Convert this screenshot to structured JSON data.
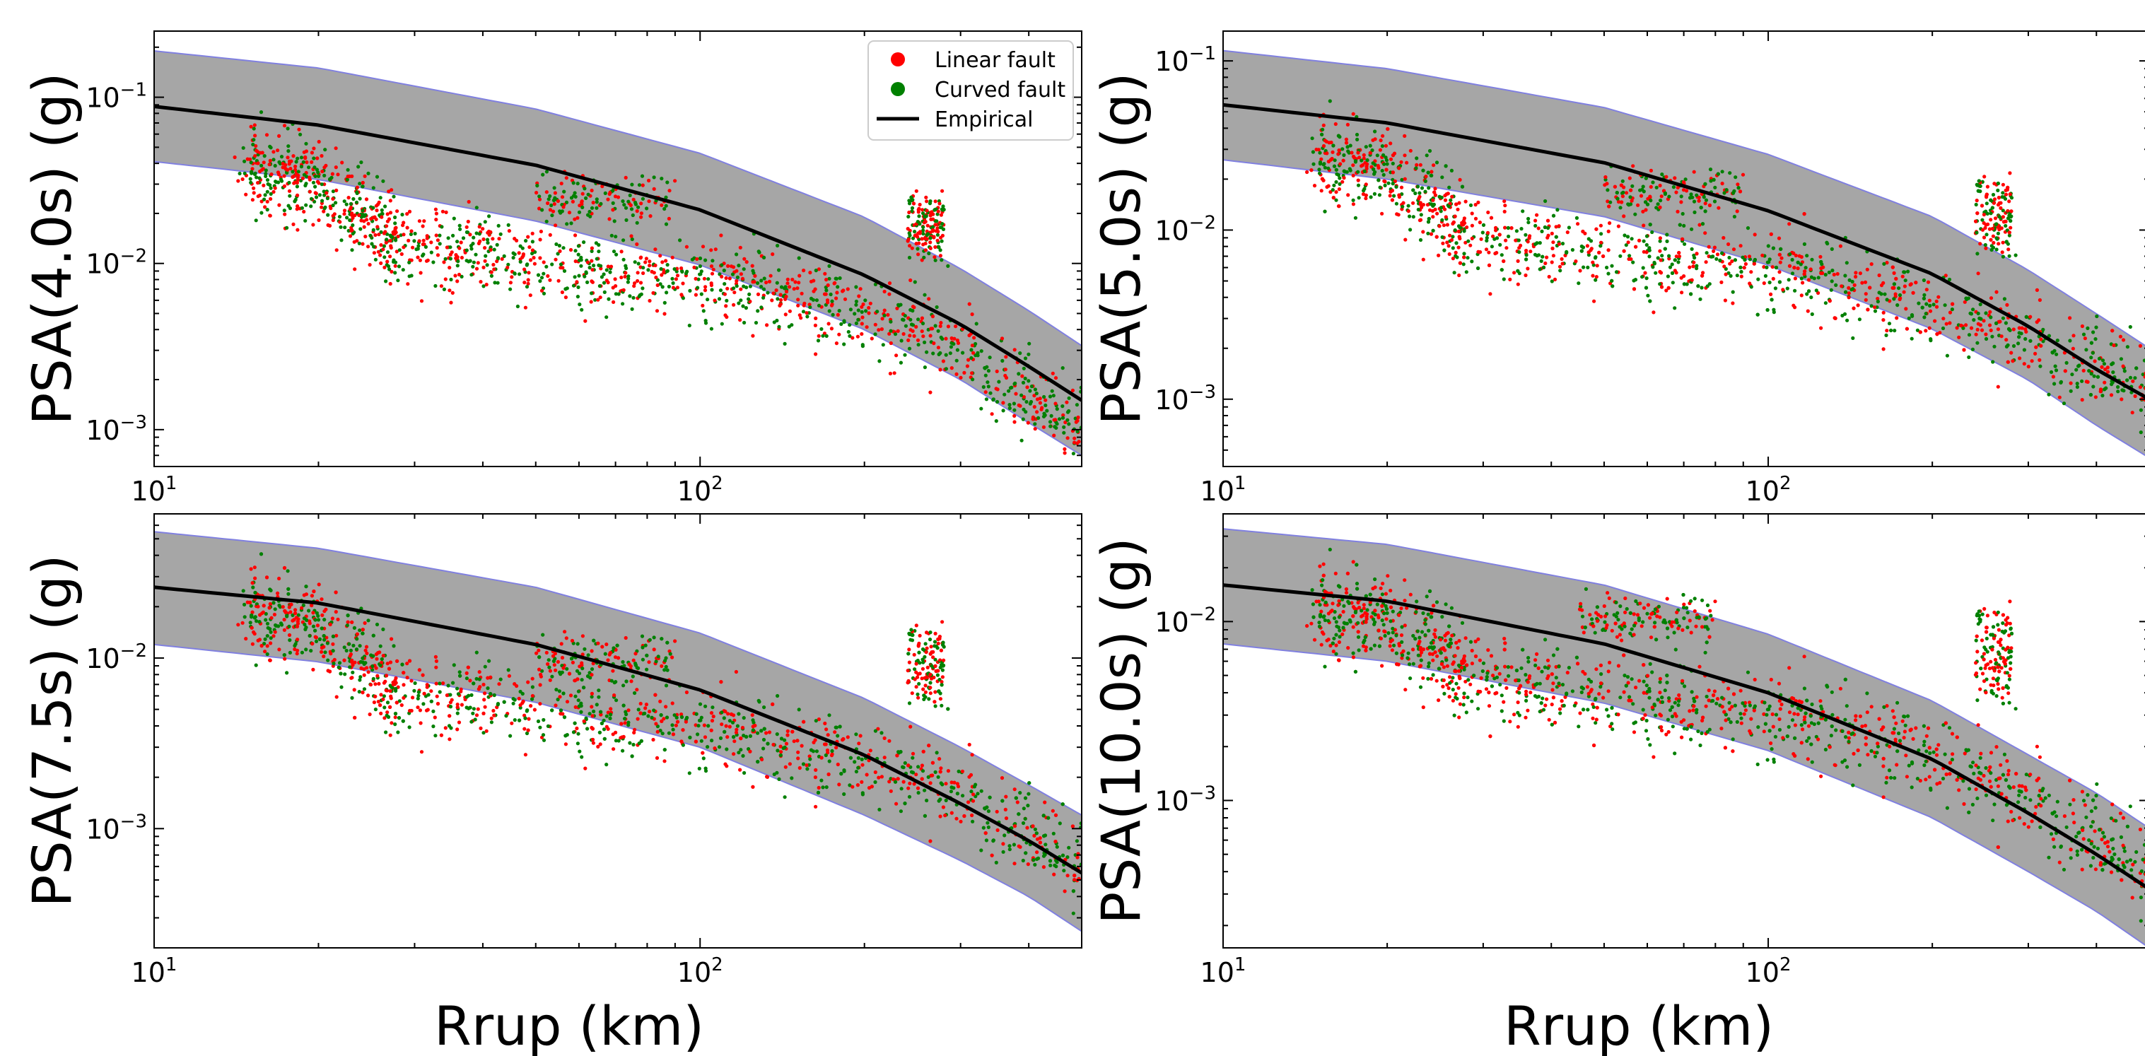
{
  "figure": {
    "xlabel": "Rrup (km)",
    "legend": {
      "placement": "top-right",
      "entries": [
        {
          "label": "Linear fault",
          "marker": "dot",
          "color": "#ff0000"
        },
        {
          "label": "Curved fault",
          "marker": "dot",
          "color": "#008000"
        },
        {
          "label": "Empirical",
          "marker": "line",
          "color": "#000000"
        }
      ]
    },
    "colors": {
      "linear": "#ff0000",
      "curved": "#008000",
      "empirical": "#000000",
      "band_fill": "#a6a6a6",
      "band_edge": "#8080e0"
    }
  },
  "chart_data": [
    {
      "type": "scatter",
      "ylabel": "PSA(4.0s) (g)",
      "xscale": "log",
      "yscale": "log",
      "xlim": [
        10,
        500
      ],
      "ylim": [
        0.0006,
        0.25
      ],
      "xticks": [
        {
          "v": 10,
          "base": "10",
          "exp": "1"
        },
        {
          "v": 100,
          "base": "10",
          "exp": "2"
        }
      ],
      "yticks": [
        {
          "v": 0.001,
          "base": "10",
          "exp": "−3"
        },
        {
          "v": 0.01,
          "base": "10",
          "exp": "−2"
        },
        {
          "v": 0.1,
          "base": "10",
          "exp": "−1"
        }
      ],
      "empirical": {
        "x": [
          10,
          20,
          50,
          100,
          200,
          300,
          400,
          500
        ],
        "y": [
          0.088,
          0.068,
          0.039,
          0.021,
          0.0085,
          0.0043,
          0.0024,
          0.0015
        ]
      },
      "band_upper": {
        "x": [
          10,
          20,
          50,
          100,
          200,
          300,
          400,
          500
        ],
        "y": [
          0.19,
          0.15,
          0.085,
          0.046,
          0.019,
          0.0093,
          0.0052,
          0.0032
        ]
      },
      "band_lower": {
        "x": [
          10,
          20,
          50,
          100,
          200,
          300,
          400,
          500
        ],
        "y": [
          0.041,
          0.032,
          0.018,
          0.0098,
          0.004,
          0.002,
          0.0011,
          0.0007
        ]
      },
      "scatter_trend": {
        "x": [
          14,
          20,
          28,
          40,
          60,
          100,
          150,
          200,
          260,
          330,
          400,
          480
        ],
        "y": [
          0.04,
          0.03,
          0.014,
          0.011,
          0.009,
          0.008,
          0.0065,
          0.005,
          0.004,
          0.0025,
          0.0016,
          0.001
        ]
      },
      "clusters": [
        {
          "x": [
            50,
            90
          ],
          "y": [
            0.03,
            0.02
          ]
        },
        {
          "x": [
            240,
            280
          ],
          "y": [
            0.012,
            0.025
          ]
        }
      ]
    },
    {
      "type": "scatter",
      "ylabel": "PSA(5.0s) (g)",
      "xscale": "log",
      "yscale": "log",
      "xlim": [
        10,
        500
      ],
      "ylim": [
        0.0004,
        0.15
      ],
      "xticks": [
        {
          "v": 10,
          "base": "10",
          "exp": "1"
        },
        {
          "v": 100,
          "base": "10",
          "exp": "2"
        }
      ],
      "yticks": [
        {
          "v": 0.001,
          "base": "10",
          "exp": "−3"
        },
        {
          "v": 0.01,
          "base": "10",
          "exp": "−2"
        },
        {
          "v": 0.1,
          "base": "10",
          "exp": "−1"
        }
      ],
      "empirical": {
        "x": [
          10,
          20,
          50,
          100,
          200,
          300,
          400,
          500
        ],
        "y": [
          0.055,
          0.043,
          0.025,
          0.013,
          0.0055,
          0.0027,
          0.0015,
          0.001
        ]
      },
      "band_upper": {
        "x": [
          10,
          20,
          50,
          100,
          200,
          300,
          400,
          500
        ],
        "y": [
          0.115,
          0.09,
          0.053,
          0.028,
          0.012,
          0.0058,
          0.0032,
          0.002
        ]
      },
      "band_lower": {
        "x": [
          10,
          20,
          50,
          100,
          200,
          300,
          400,
          500
        ],
        "y": [
          0.026,
          0.02,
          0.012,
          0.0062,
          0.0026,
          0.0013,
          0.0007,
          0.00045
        ]
      },
      "scatter_trend": {
        "x": [
          14,
          20,
          28,
          40,
          60,
          100,
          150,
          200,
          260,
          330,
          400,
          480
        ],
        "y": [
          0.028,
          0.022,
          0.01,
          0.0075,
          0.0065,
          0.006,
          0.0045,
          0.0035,
          0.0028,
          0.002,
          0.0015,
          0.0012
        ]
      },
      "clusters": [
        {
          "x": [
            50,
            90
          ],
          "y": [
            0.02,
            0.014
          ]
        },
        {
          "x": [
            240,
            280
          ],
          "y": [
            0.008,
            0.02
          ]
        }
      ]
    },
    {
      "type": "scatter",
      "ylabel": "PSA(7.5s) (g)",
      "xscale": "log",
      "yscale": "log",
      "xlim": [
        10,
        500
      ],
      "ylim": [
        0.0002,
        0.07
      ],
      "xticks": [
        {
          "v": 10,
          "base": "10",
          "exp": "1"
        },
        {
          "v": 100,
          "base": "10",
          "exp": "2"
        }
      ],
      "yticks": [
        {
          "v": 0.001,
          "base": "10",
          "exp": "−3"
        },
        {
          "v": 0.01,
          "base": "10",
          "exp": "−2"
        }
      ],
      "empirical": {
        "x": [
          10,
          20,
          50,
          100,
          200,
          300,
          400,
          500
        ],
        "y": [
          0.026,
          0.021,
          0.012,
          0.0065,
          0.0027,
          0.0014,
          0.00085,
          0.00055
        ]
      },
      "band_upper": {
        "x": [
          10,
          20,
          50,
          100,
          200,
          300,
          400,
          500
        ],
        "y": [
          0.055,
          0.044,
          0.026,
          0.014,
          0.0058,
          0.003,
          0.0018,
          0.0012
        ]
      },
      "band_lower": {
        "x": [
          10,
          20,
          50,
          100,
          200,
          300,
          400,
          500
        ],
        "y": [
          0.012,
          0.0095,
          0.0055,
          0.003,
          0.0012,
          0.00065,
          0.0004,
          0.00025
        ]
      },
      "scatter_trend": {
        "x": [
          14,
          20,
          28,
          40,
          60,
          100,
          150,
          200,
          260,
          330,
          400,
          480
        ],
        "y": [
          0.02,
          0.015,
          0.0065,
          0.0055,
          0.0045,
          0.004,
          0.003,
          0.0025,
          0.002,
          0.0014,
          0.0009,
          0.0006
        ]
      },
      "clusters": [
        {
          "x": [
            50,
            90
          ],
          "y": [
            0.012,
            0.008
          ]
        },
        {
          "x": [
            240,
            280
          ],
          "y": [
            0.006,
            0.015
          ]
        }
      ]
    },
    {
      "type": "scatter",
      "ylabel": "PSA(10.0s) (g)",
      "xscale": "log",
      "yscale": "log",
      "xlim": [
        10,
        500
      ],
      "ylim": [
        0.00015,
        0.04
      ],
      "xticks": [
        {
          "v": 10,
          "base": "10",
          "exp": "1"
        },
        {
          "v": 100,
          "base": "10",
          "exp": "2"
        }
      ],
      "yticks": [
        {
          "v": 0.001,
          "base": "10",
          "exp": "−3"
        },
        {
          "v": 0.01,
          "base": "10",
          "exp": "−2"
        }
      ],
      "empirical": {
        "x": [
          10,
          20,
          50,
          100,
          200,
          300,
          400,
          500
        ],
        "y": [
          0.016,
          0.013,
          0.0075,
          0.004,
          0.0017,
          0.00085,
          0.0005,
          0.00032
        ]
      },
      "band_upper": {
        "x": [
          10,
          20,
          50,
          100,
          200,
          300,
          400,
          500
        ],
        "y": [
          0.033,
          0.027,
          0.016,
          0.0085,
          0.0036,
          0.0018,
          0.0011,
          0.0007
        ]
      },
      "band_lower": {
        "x": [
          10,
          20,
          50,
          100,
          200,
          300,
          400,
          500
        ],
        "y": [
          0.0075,
          0.006,
          0.0035,
          0.0019,
          0.0008,
          0.0004,
          0.00024,
          0.00015
        ]
      },
      "scatter_trend": {
        "x": [
          14,
          20,
          28,
          40,
          60,
          100,
          150,
          200,
          260,
          330,
          400,
          480
        ],
        "y": [
          0.012,
          0.01,
          0.0055,
          0.004,
          0.0035,
          0.003,
          0.0024,
          0.0018,
          0.0013,
          0.0009,
          0.0006,
          0.0004
        ]
      },
      "clusters": [
        {
          "x": [
            45,
            80
          ],
          "y": [
            0.012,
            0.009
          ]
        },
        {
          "x": [
            240,
            280
          ],
          "y": [
            0.004,
            0.012
          ]
        }
      ]
    }
  ]
}
